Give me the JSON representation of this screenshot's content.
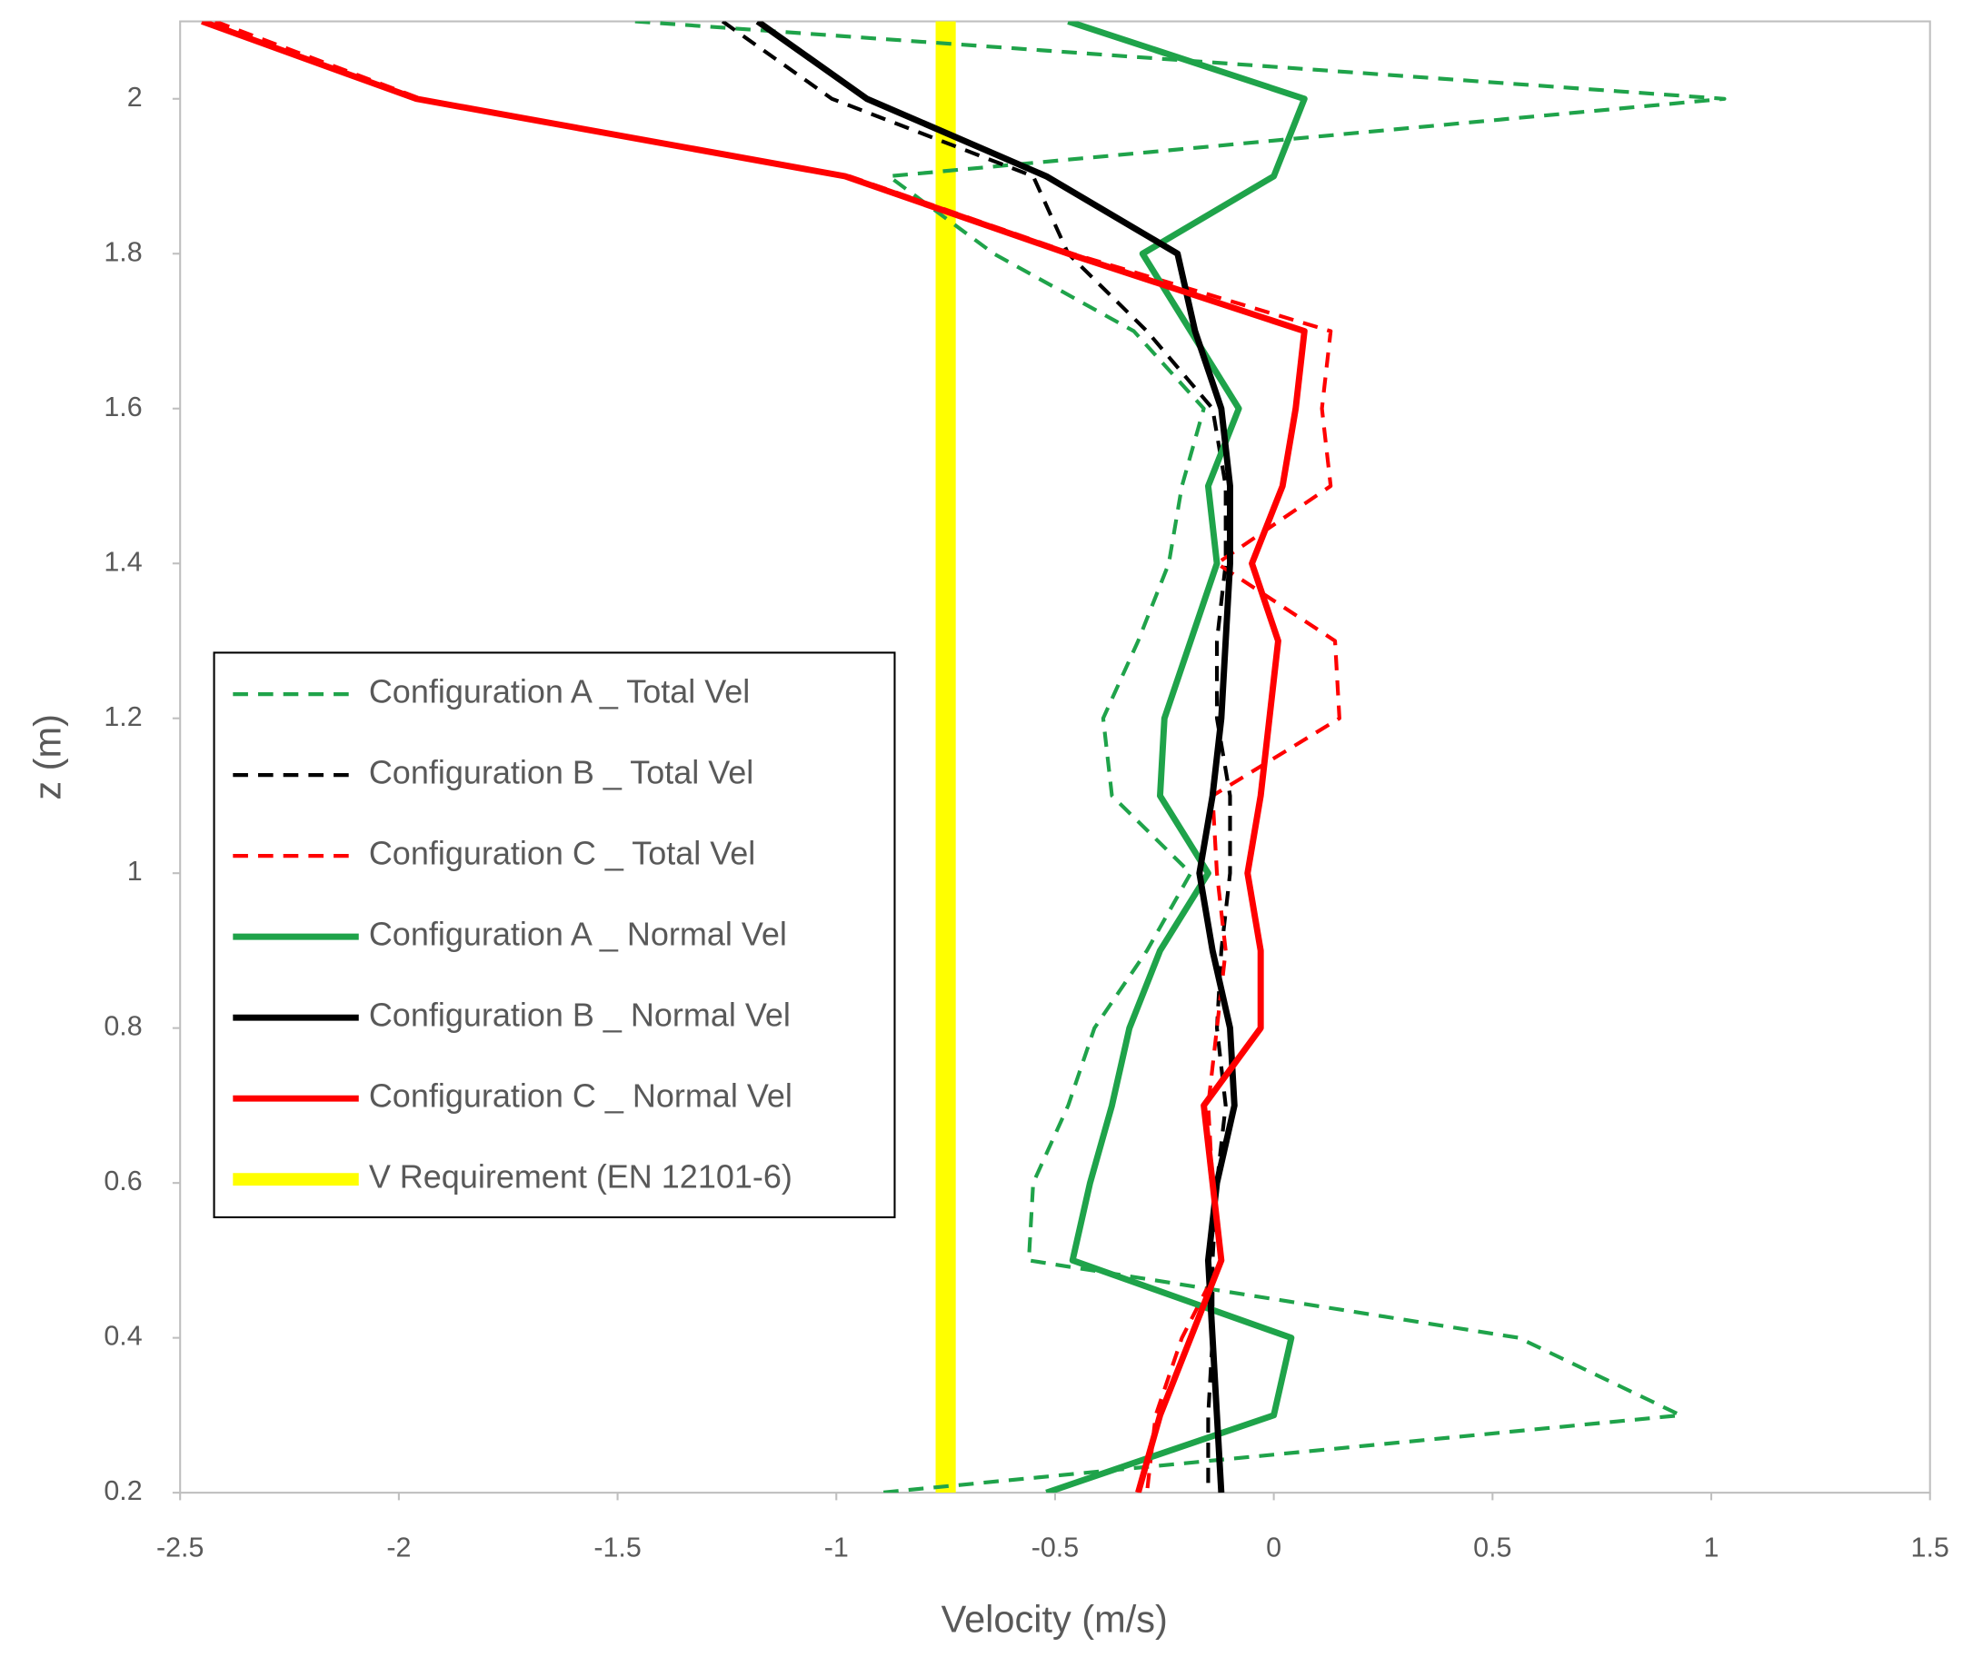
{
  "chart_data": {
    "type": "line",
    "x_label": "Velocity (m/s)",
    "y_label": "z (m)",
    "xlim": [
      -2.5,
      1.5
    ],
    "ylim": [
      0.2,
      2.1
    ],
    "xticks": [
      -2.5,
      -2,
      -1.5,
      -1,
      -0.5,
      0,
      0.5,
      1,
      1.5
    ],
    "yticks": [
      0.2,
      0.4,
      0.6,
      0.8,
      1,
      1.2,
      1.4,
      1.6,
      1.8,
      2
    ],
    "z": [
      2.1,
      2.0,
      1.9,
      1.8,
      1.7,
      1.6,
      1.5,
      1.4,
      1.3,
      1.2,
      1.1,
      1.0,
      0.9,
      0.8,
      0.7,
      0.6,
      0.5,
      0.4,
      0.3,
      0.2
    ],
    "series": [
      {
        "name": "Configuration A _ Total Vel",
        "color": "#1fa34a",
        "style": "dashed",
        "x": [
          -1.46,
          1.03,
          -0.88,
          -0.64,
          -0.32,
          -0.16,
          -0.21,
          -0.24,
          -0.31,
          -0.39,
          -0.37,
          -0.19,
          -0.29,
          -0.41,
          -0.47,
          -0.55,
          -0.56,
          0.56,
          0.93,
          -0.9
        ]
      },
      {
        "name": "Configuration B _ Total Vel",
        "color": "#000000",
        "style": "dashed",
        "x": [
          -1.26,
          -1.01,
          -0.55,
          -0.47,
          -0.29,
          -0.14,
          -0.11,
          -0.11,
          -0.13,
          -0.13,
          -0.1,
          -0.1,
          -0.12,
          -0.13,
          -0.11,
          -0.13,
          -0.14,
          -0.14,
          -0.15,
          -0.15
        ]
      },
      {
        "name": "Configuration C _ Total Vel",
        "color": "#ff0000",
        "style": "dashed",
        "x": [
          -2.42,
          -1.95,
          -0.97,
          -0.46,
          0.13,
          0.11,
          0.13,
          -0.13,
          0.14,
          0.15,
          -0.14,
          -0.13,
          -0.11,
          -0.13,
          -0.15,
          -0.14,
          -0.12,
          -0.21,
          -0.27,
          -0.29
        ]
      },
      {
        "name": "Configuration A _ Normal Vel",
        "color": "#1fa34a",
        "style": "solid",
        "x": [
          -0.47,
          0.07,
          0.0,
          -0.3,
          -0.19,
          -0.08,
          -0.15,
          -0.13,
          -0.19,
          -0.25,
          -0.26,
          -0.15,
          -0.26,
          -0.33,
          -0.37,
          -0.42,
          -0.46,
          0.04,
          0.0,
          -0.52
        ]
      },
      {
        "name": "Configuration B _ Normal Vel",
        "color": "#000000",
        "style": "solid",
        "x": [
          -1.18,
          -0.93,
          -0.52,
          -0.22,
          -0.18,
          -0.12,
          -0.1,
          -0.1,
          -0.11,
          -0.12,
          -0.14,
          -0.17,
          -0.14,
          -0.1,
          -0.09,
          -0.13,
          -0.15,
          -0.14,
          -0.13,
          -0.12
        ]
      },
      {
        "name": "Configuration C _ Normal Vel",
        "color": "#ff0000",
        "style": "solid",
        "x": [
          -2.45,
          -1.96,
          -0.98,
          -0.47,
          0.07,
          0.05,
          0.02,
          -0.05,
          0.01,
          -0.01,
          -0.03,
          -0.06,
          -0.03,
          -0.03,
          -0.16,
          -0.14,
          -0.12,
          -0.19,
          -0.26,
          -0.31
        ]
      },
      {
        "name": "V Requirement (EN 12101-6)",
        "color": "#ffff00",
        "style": "thick",
        "x": [
          -0.75,
          -0.75
        ],
        "z": [
          2.1,
          0.2
        ]
      }
    ]
  }
}
